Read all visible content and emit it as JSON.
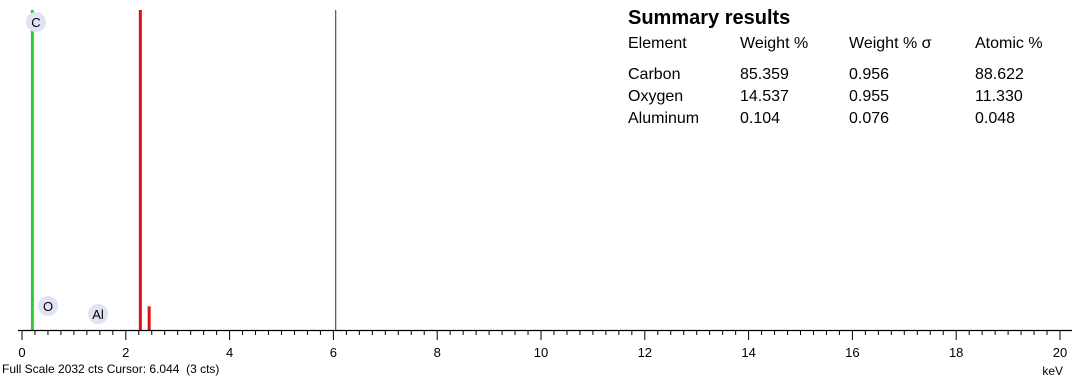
{
  "summary": {
    "title": "Summary results",
    "headers": [
      "Element",
      "Weight %",
      "Weight % σ",
      "Atomic %"
    ],
    "rows": [
      [
        "Carbon",
        "85.359",
        "0.956",
        "88.622"
      ],
      [
        "Oxygen",
        "14.537",
        "0.955",
        "11.330"
      ],
      [
        "Aluminum",
        "0.104",
        "0.076",
        "0.048"
      ]
    ]
  },
  "footer": {
    "status": "Full Scale 2032 cts Cursor: 6.044  (3 cts)"
  },
  "chart_data": {
    "type": "bar",
    "xlabel": "keV",
    "ylabel": "",
    "xlim": [
      0,
      20
    ],
    "ylim": [
      0,
      2032
    ],
    "x_ticks": [
      0,
      2,
      4,
      6,
      8,
      10,
      12,
      14,
      16,
      18,
      20
    ],
    "full_scale_counts": 2032,
    "cursor_keV": 6.044,
    "cursor_counts": 3,
    "element_markers": [
      {
        "symbol": "C",
        "energy_keV": 0.2
      },
      {
        "symbol": "O",
        "energy_keV": 0.5
      },
      {
        "symbol": "Al",
        "energy_keV": 1.5
      }
    ],
    "series": [
      {
        "energy_keV": 0.2,
        "counts": 2032,
        "color": "#2ecc2e"
      },
      {
        "energy_keV": 2.28,
        "counts": 2032,
        "color": "#e01010"
      },
      {
        "energy_keV": 2.45,
        "counts": 150,
        "color": "#e01010"
      }
    ],
    "cursor_line_color": "#555555",
    "marker_fill": "#dfe3f3"
  }
}
